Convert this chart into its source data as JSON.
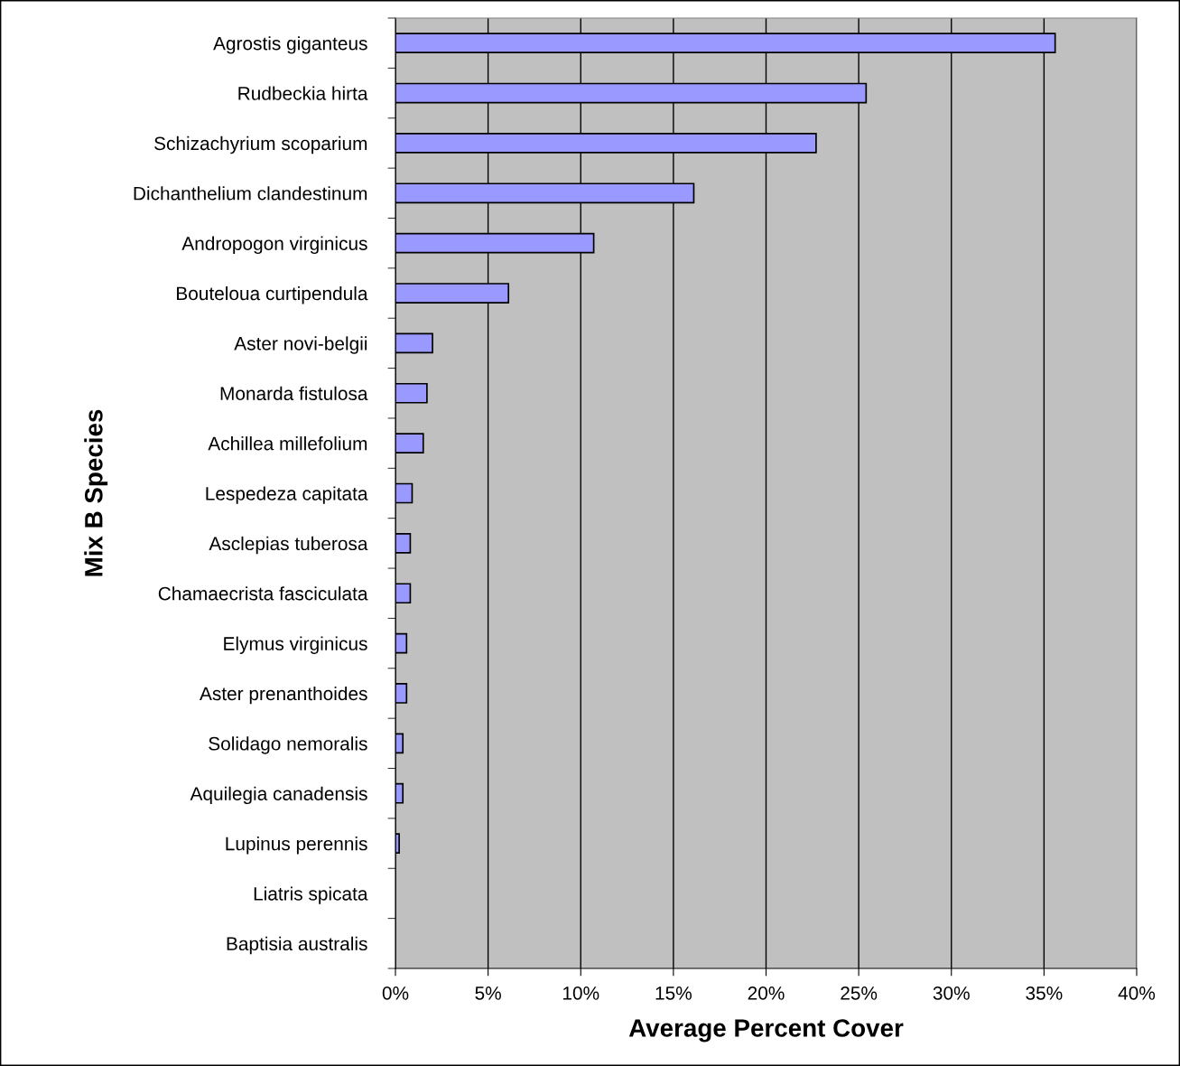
{
  "chart_data": {
    "type": "bar",
    "orientation": "horizontal",
    "xlabel": "Average Percent Cover",
    "ylabel": "Mix B Species",
    "categories": [
      "Agrostis giganteus",
      "Rudbeckia hirta",
      "Schizachyrium scoparium",
      "Dichanthelium clandestinum",
      "Andropogon virginicus",
      "Bouteloua curtipendula",
      "Aster novi-belgii",
      "Monarda fistulosa",
      "Achillea millefolium",
      "Lespedeza capitata",
      "Asclepias tuberosa",
      "Chamaecrista fasciculata",
      "Elymus virginicus",
      "Aster prenanthoides",
      "Solidago nemoralis",
      "Aquilegia canadensis",
      "Lupinus perennis",
      "Liatris spicata",
      "Baptisia australis"
    ],
    "values": [
      35.6,
      25.4,
      22.7,
      16.1,
      10.7,
      6.1,
      2.0,
      1.7,
      1.5,
      0.9,
      0.8,
      0.8,
      0.6,
      0.6,
      0.4,
      0.4,
      0.2,
      0,
      0
    ],
    "color": "#9999ff",
    "xlim": [
      0,
      40
    ],
    "xticks": [
      {
        "value": 0,
        "label": "0%"
      },
      {
        "value": 5,
        "label": "5%"
      },
      {
        "value": 10,
        "label": "10%"
      },
      {
        "value": 15,
        "label": "15%"
      },
      {
        "value": 20,
        "label": "20%"
      },
      {
        "value": 25,
        "label": "25%"
      },
      {
        "value": 30,
        "label": "30%"
      },
      {
        "value": 35,
        "label": "35%"
      },
      {
        "value": 40,
        "label": "40%"
      }
    ],
    "grid": "x",
    "legend": false
  }
}
